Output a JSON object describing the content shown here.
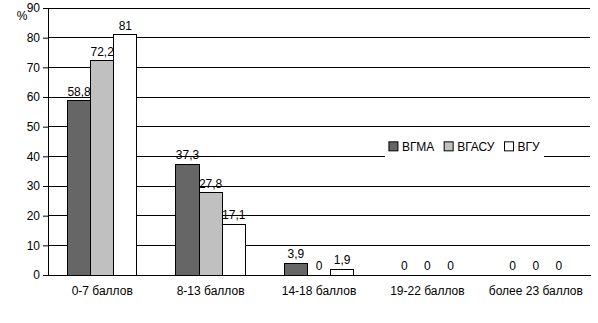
{
  "chart_data": {
    "type": "bar",
    "y_label": "%",
    "categories": [
      "0-7 баллов",
      "8-13 баллов",
      "14-18 баллов",
      "19-22 баллов",
      "более 23 баллов"
    ],
    "series": [
      {
        "name": "ВГМА",
        "color": "#666666",
        "values": [
          58.8,
          37.3,
          3.9,
          0,
          0
        ],
        "value_labels": [
          "58,8",
          "37,3",
          "3,9",
          "0",
          "0"
        ]
      },
      {
        "name": "ВГАСУ",
        "color": "#c0c0c0",
        "values": [
          72.2,
          27.8,
          0,
          0,
          0
        ],
        "value_labels": [
          "72,2",
          "27,8",
          "0",
          "0",
          "0"
        ]
      },
      {
        "name": "ВГУ",
        "color": "#ffffff",
        "values": [
          81,
          17.1,
          1.9,
          0,
          0
        ],
        "value_labels": [
          "81",
          "17,1",
          "1,9",
          "0",
          "0"
        ]
      }
    ],
    "ylim": [
      0,
      90
    ],
    "yticks": [
      0,
      10,
      20,
      30,
      40,
      50,
      60,
      70,
      80,
      90
    ],
    "grid": true,
    "legend": "center right",
    "data_labels": true
  }
}
